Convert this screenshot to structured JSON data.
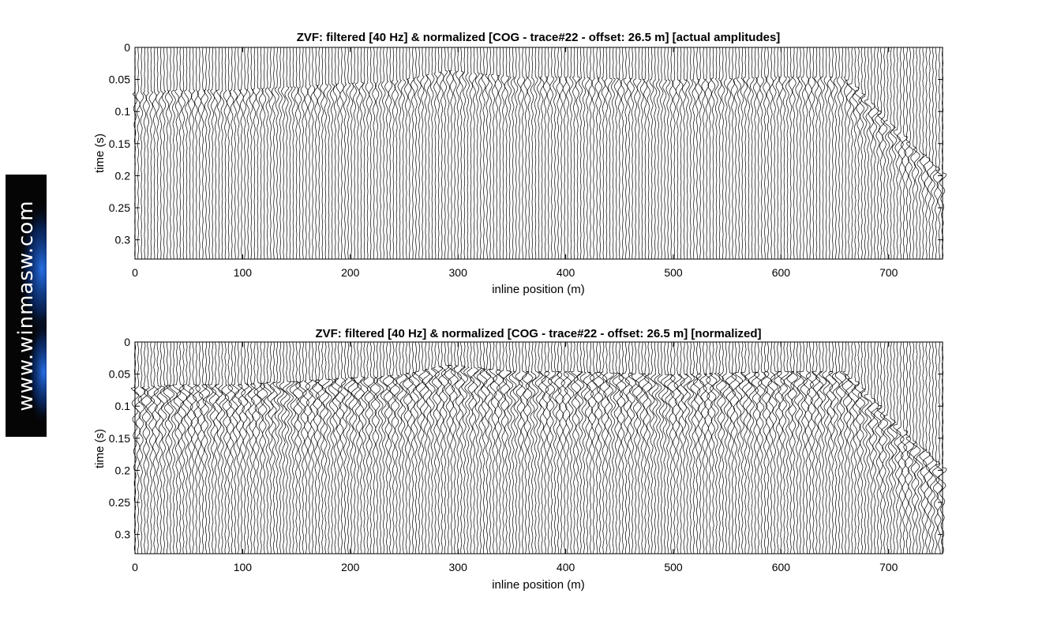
{
  "watermark": {
    "text": "www.winmasw.com",
    "accent": "#1a6cff"
  },
  "chart_data": [
    {
      "type": "seismic-wiggle",
      "title": "ZVF: filtered [40 Hz] & normalized [COG - trace#22 - offset: 26.5 m] [actual amplitudes]",
      "xlabel": "inline position (m)",
      "ylabel": "time (s)",
      "xlim": [
        0,
        750
      ],
      "ylim": [
        0.33,
        0
      ],
      "x_ticks": [
        0,
        100,
        200,
        300,
        400,
        500,
        600,
        700
      ],
      "y_ticks": [
        0,
        0.05,
        0.1,
        0.15,
        0.2,
        0.25,
        0.3
      ],
      "x_tick_labels": [
        "0",
        "100",
        "200",
        "300",
        "400",
        "500",
        "600",
        "700"
      ],
      "y_tick_labels": [
        "0",
        "0.05",
        "0.1",
        "0.15",
        "0.2",
        "0.25",
        "0.3"
      ],
      "trace_spacing_m": 3,
      "amplitude_mode": "actual",
      "first_arrival_time_s": {
        "x": [
          0,
          50,
          100,
          200,
          250,
          290,
          350,
          400,
          500,
          600,
          660,
          700,
          750
        ],
        "t": [
          0.075,
          0.07,
          0.07,
          0.06,
          0.055,
          0.04,
          0.05,
          0.05,
          0.055,
          0.05,
          0.05,
          0.12,
          0.2
        ]
      },
      "line_color": "#000000"
    },
    {
      "type": "seismic-wiggle",
      "title": "ZVF: filtered [40 Hz] & normalized [COG - trace#22 - offset: 26.5 m] [normalized]",
      "xlabel": "inline position (m)",
      "ylabel": "time (s)",
      "xlim": [
        0,
        750
      ],
      "ylim": [
        0.33,
        0
      ],
      "x_ticks": [
        0,
        100,
        200,
        300,
        400,
        500,
        600,
        700
      ],
      "y_ticks": [
        0,
        0.05,
        0.1,
        0.15,
        0.2,
        0.25,
        0.3
      ],
      "x_tick_labels": [
        "0",
        "100",
        "200",
        "300",
        "400",
        "500",
        "600",
        "700"
      ],
      "y_tick_labels": [
        "0",
        "0.05",
        "0.1",
        "0.15",
        "0.2",
        "0.25",
        "0.3"
      ],
      "trace_spacing_m": 3,
      "amplitude_mode": "normalized",
      "first_arrival_time_s": {
        "x": [
          0,
          50,
          100,
          200,
          250,
          290,
          350,
          400,
          500,
          600,
          660,
          700,
          750
        ],
        "t": [
          0.075,
          0.07,
          0.07,
          0.06,
          0.055,
          0.04,
          0.05,
          0.05,
          0.055,
          0.05,
          0.05,
          0.12,
          0.2
        ]
      },
      "line_color": "#000000"
    }
  ]
}
